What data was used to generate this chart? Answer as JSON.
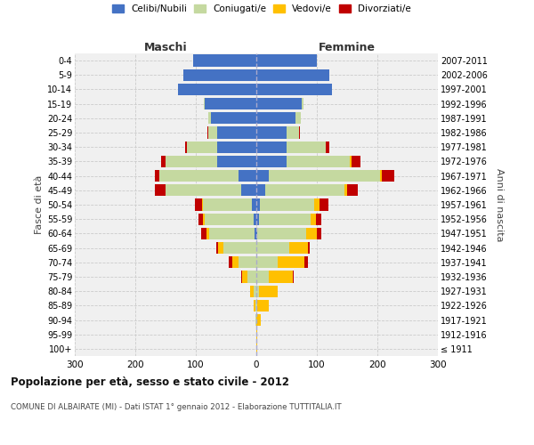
{
  "age_groups": [
    "100+",
    "95-99",
    "90-94",
    "85-89",
    "80-84",
    "75-79",
    "70-74",
    "65-69",
    "60-64",
    "55-59",
    "50-54",
    "45-49",
    "40-44",
    "35-39",
    "30-34",
    "25-29",
    "20-24",
    "15-19",
    "10-14",
    "5-9",
    "0-4"
  ],
  "birth_years": [
    "≤ 1911",
    "1912-1916",
    "1917-1921",
    "1922-1926",
    "1927-1931",
    "1932-1936",
    "1937-1941",
    "1942-1946",
    "1947-1951",
    "1952-1956",
    "1957-1961",
    "1962-1966",
    "1967-1971",
    "1972-1976",
    "1977-1981",
    "1982-1986",
    "1987-1991",
    "1992-1996",
    "1997-2001",
    "2002-2006",
    "2007-2011"
  ],
  "male": {
    "celibi": [
      0,
      0,
      0,
      0,
      0,
      0,
      0,
      0,
      3,
      5,
      8,
      25,
      30,
      65,
      65,
      65,
      75,
      85,
      130,
      120,
      105
    ],
    "coniugati": [
      0,
      0,
      1,
      2,
      5,
      15,
      30,
      55,
      75,
      80,
      80,
      125,
      130,
      85,
      50,
      15,
      5,
      2,
      0,
      0,
      0
    ],
    "vedovi": [
      0,
      0,
      0,
      2,
      5,
      8,
      10,
      8,
      5,
      3,
      2,
      0,
      0,
      0,
      0,
      0,
      0,
      0,
      0,
      0,
      0
    ],
    "divorziati": [
      0,
      0,
      0,
      0,
      1,
      2,
      5,
      3,
      8,
      8,
      12,
      18,
      8,
      8,
      3,
      1,
      0,
      0,
      0,
      0,
      0
    ]
  },
  "female": {
    "nubili": [
      0,
      0,
      0,
      0,
      0,
      0,
      0,
      0,
      2,
      4,
      6,
      15,
      20,
      50,
      50,
      50,
      65,
      75,
      125,
      120,
      100
    ],
    "coniugate": [
      0,
      0,
      0,
      2,
      5,
      20,
      35,
      55,
      80,
      85,
      90,
      130,
      185,
      105,
      65,
      20,
      8,
      3,
      0,
      0,
      0
    ],
    "vedove": [
      1,
      2,
      8,
      18,
      30,
      40,
      45,
      30,
      18,
      10,
      8,
      5,
      3,
      2,
      0,
      0,
      0,
      0,
      0,
      0,
      0
    ],
    "divorziate": [
      0,
      0,
      0,
      0,
      1,
      2,
      5,
      3,
      8,
      8,
      15,
      18,
      20,
      15,
      5,
      2,
      0,
      0,
      0,
      0,
      0
    ]
  },
  "colors": {
    "celibi": "#4472c4",
    "coniugati": "#c5d9a0",
    "vedovi": "#ffc000",
    "divorziati": "#c00000"
  },
  "xlim": 300,
  "title": "Popolazione per età, sesso e stato civile - 2012",
  "subtitle": "COMUNE DI ALBAIRATE (MI) - Dati ISTAT 1° gennaio 2012 - Elaborazione TUTTITALIA.IT",
  "ylabel_left": "Fasce di età",
  "ylabel_right": "Anni di nascita",
  "legend_labels": [
    "Celibi/Nubili",
    "Coniugati/e",
    "Vedovi/e",
    "Divorziati/e"
  ]
}
